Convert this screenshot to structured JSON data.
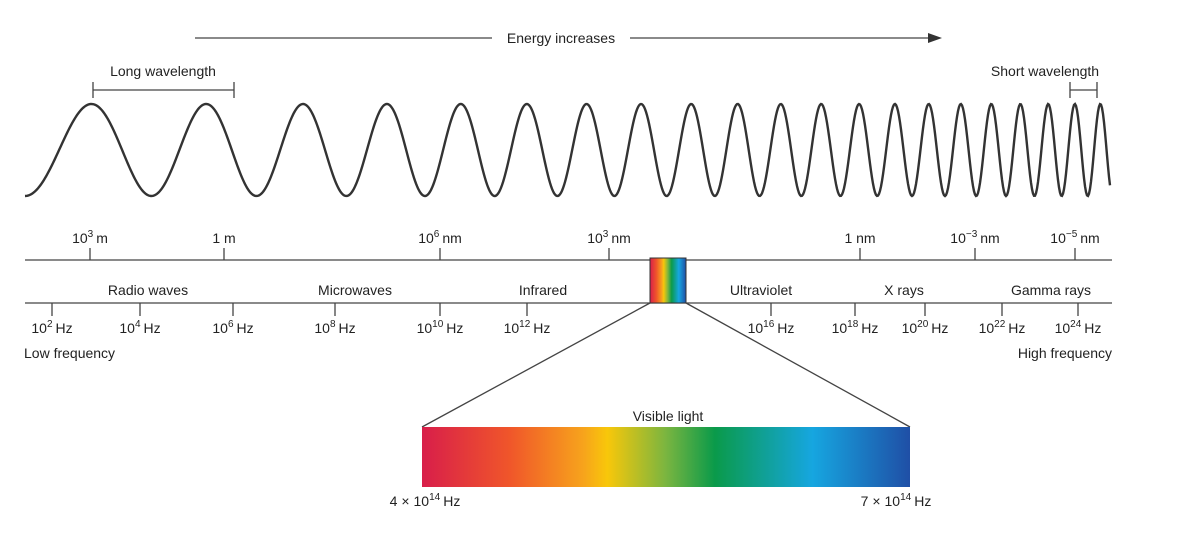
{
  "energy_label": "Energy increases",
  "long_wavelength": "Long wavelength",
  "short_wavelength": "Short wavelength",
  "wavelength_scale": [
    {
      "base": "10",
      "exp": "3",
      "unit": "m"
    },
    "1 m",
    {
      "base": "10",
      "exp": "6",
      "unit": "nm"
    },
    {
      "base": "10",
      "exp": "3",
      "unit": "nm"
    },
    "1 nm",
    {
      "base": "10",
      "exp": "−3",
      "unit": "nm"
    },
    {
      "base": "10",
      "exp": "−5",
      "unit": "nm"
    }
  ],
  "bands": [
    "Radio waves",
    "Microwaves",
    "Infrared",
    "Ultraviolet",
    "X rays",
    "Gamma rays"
  ],
  "frequency_scale": [
    {
      "base": "10",
      "exp": "2",
      "unit": "Hz"
    },
    {
      "base": "10",
      "exp": "4",
      "unit": "Hz"
    },
    {
      "base": "10",
      "exp": "6",
      "unit": "Hz"
    },
    {
      "base": "10",
      "exp": "8",
      "unit": "Hz"
    },
    {
      "base": "10",
      "exp": "10",
      "unit": "Hz"
    },
    {
      "base": "10",
      "exp": "12",
      "unit": "Hz"
    },
    {
      "base": "10",
      "exp": "16",
      "unit": "Hz"
    },
    {
      "base": "10",
      "exp": "18",
      "unit": "Hz"
    },
    {
      "base": "10",
      "exp": "20",
      "unit": "Hz"
    },
    {
      "base": "10",
      "exp": "22",
      "unit": "Hz"
    },
    {
      "base": "10",
      "exp": "24",
      "unit": "Hz"
    }
  ],
  "low_frequency": "Low frequency",
  "high_frequency": "High frequency",
  "visible": {
    "label": "Visible light",
    "low": {
      "coef": "4 ×",
      "base": "10",
      "exp": "14",
      "unit": "Hz"
    },
    "high": {
      "coef": "7 ×",
      "base": "10",
      "exp": "14",
      "unit": "Hz"
    }
  }
}
